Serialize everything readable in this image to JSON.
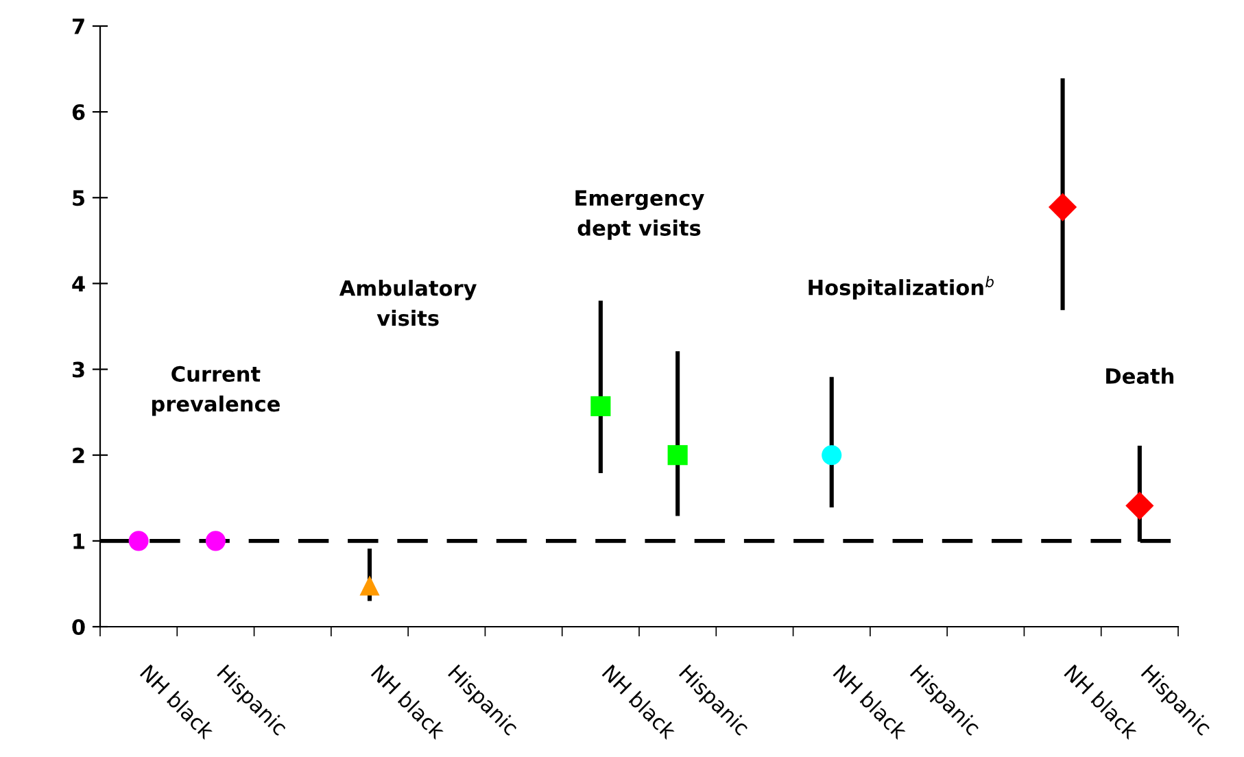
{
  "chart_data": {
    "type": "scatter",
    "categories": [
      "NH black",
      "Hispanic",
      null,
      "NH black",
      "Hispanic",
      null,
      "NH black",
      "Hispanic",
      null,
      "NH black",
      "Hispanic",
      null,
      "NH black",
      "Hispanic"
    ],
    "series": [
      {
        "color": "#ff00ff",
        "marker": "circle",
        "values": [
          1,
          1,
          null,
          null,
          null,
          null,
          null,
          null,
          null,
          null,
          null,
          null,
          null,
          null
        ],
        "errors": [
          null,
          null,
          null,
          null,
          null,
          null,
          null,
          null,
          null,
          null,
          null,
          null,
          null,
          null
        ]
      },
      {
        "color": "#ff9900",
        "marker": "triangle",
        "values": [
          null,
          null,
          null,
          0.48,
          null,
          null,
          null,
          null,
          null,
          null,
          null,
          null,
          null,
          null
        ],
        "errors": [
          null,
          null,
          null,
          [
            0.3,
            0.91
          ],
          null,
          null,
          null,
          null,
          null,
          null,
          null,
          null,
          null,
          null
        ]
      },
      {
        "color": "#00ff00",
        "marker": "square",
        "values": [
          null,
          null,
          null,
          null,
          null,
          null,
          2.57,
          2.0,
          null,
          null,
          null,
          null,
          null,
          null
        ],
        "errors": [
          null,
          null,
          null,
          null,
          null,
          null,
          [
            1.79,
            3.8
          ],
          [
            1.29,
            3.21
          ],
          null,
          null,
          null,
          null,
          null,
          null
        ]
      },
      {
        "color": "#00ffff",
        "marker": "circle",
        "values": [
          null,
          null,
          null,
          null,
          null,
          null,
          null,
          null,
          null,
          2.0,
          null,
          null,
          null,
          null
        ],
        "errors": [
          null,
          null,
          null,
          null,
          null,
          null,
          null,
          null,
          null,
          [
            1.39,
            2.91
          ],
          null,
          null,
          null,
          null
        ]
      },
      {
        "color": "#ff0000",
        "marker": "diamond",
        "values": [
          null,
          null,
          null,
          null,
          null,
          null,
          null,
          null,
          null,
          null,
          null,
          null,
          4.89,
          1.41
        ],
        "errors": [
          null,
          null,
          null,
          null,
          null,
          null,
          null,
          null,
          null,
          null,
          null,
          null,
          [
            3.69,
            6.39
          ],
          [
            0.99,
            2.11
          ]
        ]
      }
    ],
    "ylim": [
      0,
      7
    ],
    "yticks": [
      0,
      1,
      2,
      3,
      4,
      5,
      6,
      7
    ],
    "grid": false,
    "legend": false,
    "ref_lines": [
      {
        "axis": "y",
        "value": 1,
        "color": "#000000",
        "line_style": "dashed"
      }
    ],
    "annotations": [
      "Current\nprevalence",
      "Ambulatory\nvisits",
      "Emergency\ndept visits",
      "Hospitalization$^{b}$",
      "Death"
    ]
  }
}
